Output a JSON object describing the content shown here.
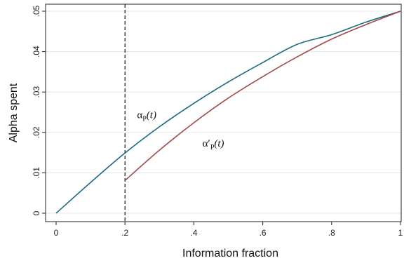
{
  "chart_data": {
    "type": "line",
    "xlabel": "Information fraction",
    "ylabel": "Alpha spent",
    "xlim": [
      0,
      1
    ],
    "ylim": [
      0,
      0.05
    ],
    "x_ticks": [
      0,
      0.2,
      0.4,
      0.6,
      0.8,
      1.0
    ],
    "x_tick_labels": [
      "0",
      ".2",
      ".4",
      ".6",
      ".8",
      "1"
    ],
    "y_ticks": [
      0,
      0.01,
      0.02,
      0.03,
      0.04,
      0.05
    ],
    "y_tick_labels": [
      "0",
      ".01",
      ".02",
      ".03",
      ".04",
      ".05"
    ],
    "grid": "horizontal",
    "vline": {
      "x": 0.2,
      "style": "dashed"
    },
    "series": [
      {
        "color": "#1a6b80",
        "x": [
          0,
          0.1,
          0.2,
          0.3,
          0.4,
          0.5,
          0.6,
          0.7,
          0.8,
          0.9,
          1.0
        ],
        "y": [
          0,
          0.0076,
          0.0149,
          0.0214,
          0.0272,
          0.0325,
          0.0373,
          0.0418,
          0.0442,
          0.0473,
          0.05
        ]
      },
      {
        "color": "#a34a4a",
        "x": [
          0.2,
          0.3,
          0.4,
          0.5,
          0.6,
          0.7,
          0.8,
          0.9,
          1.0
        ],
        "y": [
          0.0081,
          0.0156,
          0.0224,
          0.0285,
          0.0338,
          0.0387,
          0.0431,
          0.0467,
          0.05
        ]
      }
    ],
    "annotations": [
      {
        "main": "α",
        "sub": "P",
        "paren": "(t)",
        "x": 0.235,
        "y": 0.0235
      },
      {
        "main": "α′",
        "sub": "P",
        "paren": "(t)",
        "x": 0.425,
        "y": 0.0165
      }
    ]
  }
}
